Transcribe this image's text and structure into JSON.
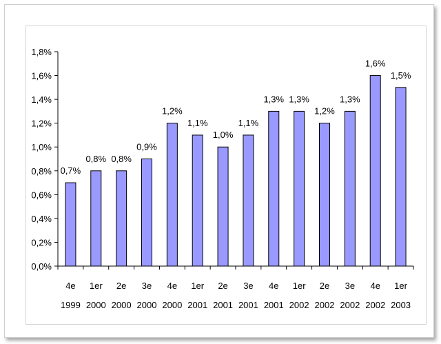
{
  "chart_data": {
    "type": "bar",
    "title": "",
    "xlabel": "",
    "ylabel": "",
    "categories": [
      [
        "4e",
        "1999"
      ],
      [
        "1er",
        "2000"
      ],
      [
        "2e",
        "2000"
      ],
      [
        "3e",
        "2000"
      ],
      [
        "4e",
        "2000"
      ],
      [
        "1er",
        "2001"
      ],
      [
        "2e",
        "2001"
      ],
      [
        "3e",
        "2001"
      ],
      [
        "4e",
        "2001"
      ],
      [
        "1er",
        "2002"
      ],
      [
        "2e",
        "2002"
      ],
      [
        "3e",
        "2002"
      ],
      [
        "4e",
        "2002"
      ],
      [
        "1er",
        "2003"
      ]
    ],
    "values": [
      0.7,
      0.8,
      0.8,
      0.9,
      1.2,
      1.1,
      1.0,
      1.1,
      1.3,
      1.3,
      1.2,
      1.3,
      1.6,
      1.5
    ],
    "data_labels": [
      "0,7%",
      "0,8%",
      "0,8%",
      "0,9%",
      "1,2%",
      "1,1%",
      "1,0%",
      "1,1%",
      "1,3%",
      "1,3%",
      "1,2%",
      "1,3%",
      "1,6%",
      "1,5%"
    ],
    "y_ticks": [
      0,
      0.2,
      0.4,
      0.6,
      0.8,
      1.0,
      1.2,
      1.4,
      1.6,
      1.8
    ],
    "y_tick_labels": [
      "0,0%",
      "0,2%",
      "0,4%",
      "0,6%",
      "0,8%",
      "1,0%",
      "1,2%",
      "1,4%",
      "1,6%",
      "1,8%"
    ],
    "ylim": [
      0,
      1.8
    ],
    "grid": false,
    "legend": "none",
    "colors": {
      "bar_fill": "#9999ff",
      "bar_stroke": "#000000",
      "axis": "#000000"
    }
  }
}
